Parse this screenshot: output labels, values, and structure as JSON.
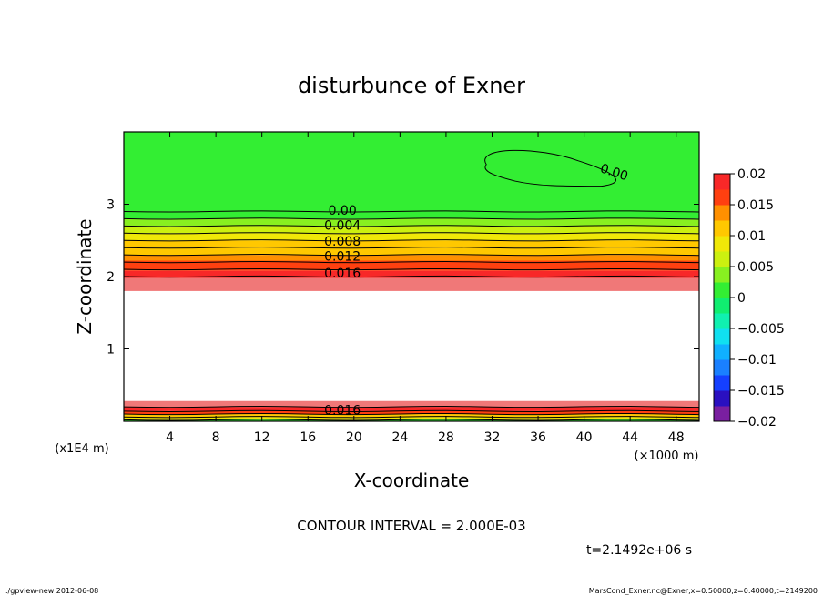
{
  "chart_data": {
    "type": "heatmap",
    "title": "disturbunce of Exner",
    "xlabel": "X-coordinate",
    "ylabel": "Z-coordinate",
    "x_unit": "(×1000 m)",
    "y_unit": "(x1E4 m)",
    "xlim": [
      0,
      50
    ],
    "ylim": [
      0,
      4
    ],
    "x_ticks": [
      4,
      8,
      12,
      16,
      20,
      24,
      28,
      32,
      36,
      40,
      44,
      48
    ],
    "y_ticks": [
      1,
      2,
      3
    ],
    "colorbar": {
      "range": [
        -0.02,
        0.02
      ],
      "tick_labels": [
        "0.02",
        "0.015",
        "0.01",
        "0.005",
        "0",
        "−0.005",
        "−0.01",
        "−0.015",
        "−0.02"
      ]
    },
    "contour_interval": "CONTOUR INTERVAL = 2.000E-03",
    "contour_labels": [
      "0.00",
      "0.004",
      "0.008",
      "0.012",
      "0.016",
      "0.016",
      "0.00"
    ],
    "time": "t=2.1492e+06 s",
    "bands": [
      {
        "z": [
          0.0,
          0.02
        ],
        "value": 0.0
      },
      {
        "z": [
          0.02,
          0.06
        ],
        "value": 0.008
      },
      {
        "z": [
          0.06,
          0.1
        ],
        "value": 0.012
      },
      {
        "z": [
          0.1,
          0.14
        ],
        "value": 0.016
      },
      {
        "z": [
          0.14,
          0.2
        ],
        "value": 0.018
      },
      {
        "z": [
          0.2,
          0.28
        ],
        "value": 0.02
      },
      {
        "z": [
          1.8,
          1.98
        ],
        "value": 0.02
      },
      {
        "z": [
          1.98,
          2.08
        ],
        "value": 0.018
      },
      {
        "z": [
          2.08,
          2.22
        ],
        "value": 0.016
      },
      {
        "z": [
          2.22,
          2.3
        ],
        "value": 0.014
      },
      {
        "z": [
          2.3,
          2.4
        ],
        "value": 0.012
      },
      {
        "z": [
          2.4,
          2.5
        ],
        "value": 0.01
      },
      {
        "z": [
          2.5,
          2.6
        ],
        "value": 0.008
      },
      {
        "z": [
          2.6,
          2.7
        ],
        "value": 0.006
      },
      {
        "z": [
          2.7,
          2.8
        ],
        "value": 0.004
      },
      {
        "z": [
          2.8,
          2.9
        ],
        "value": 0.002
      },
      {
        "z": [
          2.9,
          4.0
        ],
        "value": 0.0
      }
    ]
  },
  "footer": {
    "left": "./gpview-new  2012-06-08",
    "right": "MarsCond_Exner.nc@Exner,x=0:50000,z=0:40000,t=2149200"
  },
  "colors": {
    "background": "#ffffff",
    "green": "#33ee33"
  }
}
